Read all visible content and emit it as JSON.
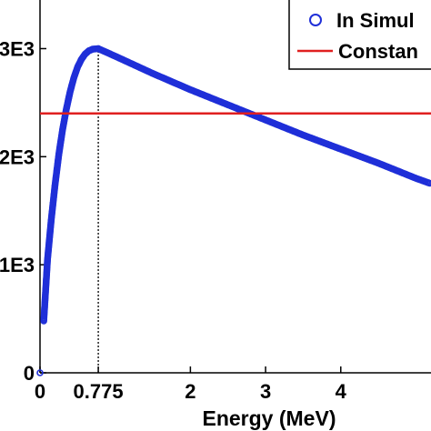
{
  "chart_data": {
    "type": "scatter",
    "title": "",
    "xlabel": "Energy (MeV)",
    "ylabel": "",
    "xlim": [
      0,
      5.2
    ],
    "ylim": [
      0,
      3450
    ],
    "x_ticks": [
      {
        "value": 0,
        "label": "0"
      },
      {
        "value": 0.775,
        "label": "0.775"
      },
      {
        "value": 2,
        "label": "2"
      },
      {
        "value": 3,
        "label": "3"
      },
      {
        "value": 4,
        "label": "4"
      }
    ],
    "y_ticks": [
      {
        "value": 0,
        "label": "0"
      },
      {
        "value": 1000,
        "label": "1E3"
      },
      {
        "value": 2000,
        "label": "2E3"
      },
      {
        "value": 3000,
        "label": "3E3"
      }
    ],
    "series": [
      {
        "name": "In Simul",
        "style": "markers",
        "color": "#1f2fd8",
        "peak": {
          "x": 0.775,
          "y": 3000
        },
        "points": [
          {
            "x": 0.0,
            "y": 0
          },
          {
            "x": 0.05,
            "y": 480
          },
          {
            "x": 0.1,
            "y": 1050
          },
          {
            "x": 0.15,
            "y": 1420
          },
          {
            "x": 0.2,
            "y": 1740
          },
          {
            "x": 0.25,
            "y": 2020
          },
          {
            "x": 0.3,
            "y": 2250
          },
          {
            "x": 0.35,
            "y": 2440
          },
          {
            "x": 0.4,
            "y": 2600
          },
          {
            "x": 0.45,
            "y": 2730
          },
          {
            "x": 0.5,
            "y": 2830
          },
          {
            "x": 0.55,
            "y": 2900
          },
          {
            "x": 0.6,
            "y": 2950
          },
          {
            "x": 0.65,
            "y": 2980
          },
          {
            "x": 0.7,
            "y": 2995
          },
          {
            "x": 0.775,
            "y": 3000
          },
          {
            "x": 1.0,
            "y": 2930
          },
          {
            "x": 1.5,
            "y": 2770
          },
          {
            "x": 2.0,
            "y": 2620
          },
          {
            "x": 2.5,
            "y": 2480
          },
          {
            "x": 3.0,
            "y": 2340
          },
          {
            "x": 3.5,
            "y": 2200
          },
          {
            "x": 4.0,
            "y": 2070
          },
          {
            "x": 4.5,
            "y": 1940
          },
          {
            "x": 5.0,
            "y": 1800
          },
          {
            "x": 5.2,
            "y": 1750
          }
        ]
      },
      {
        "name": "Constan",
        "style": "line",
        "color": "#e02020",
        "points": [
          {
            "x": 0,
            "y": 2400
          },
          {
            "x": 5.2,
            "y": 2400
          }
        ]
      }
    ],
    "annotations": [
      {
        "type": "vertical-dotted-line",
        "x": 0.775,
        "from_y": 0,
        "to_y": 3000
      }
    ],
    "grid": false,
    "legend_position": "top-right"
  }
}
